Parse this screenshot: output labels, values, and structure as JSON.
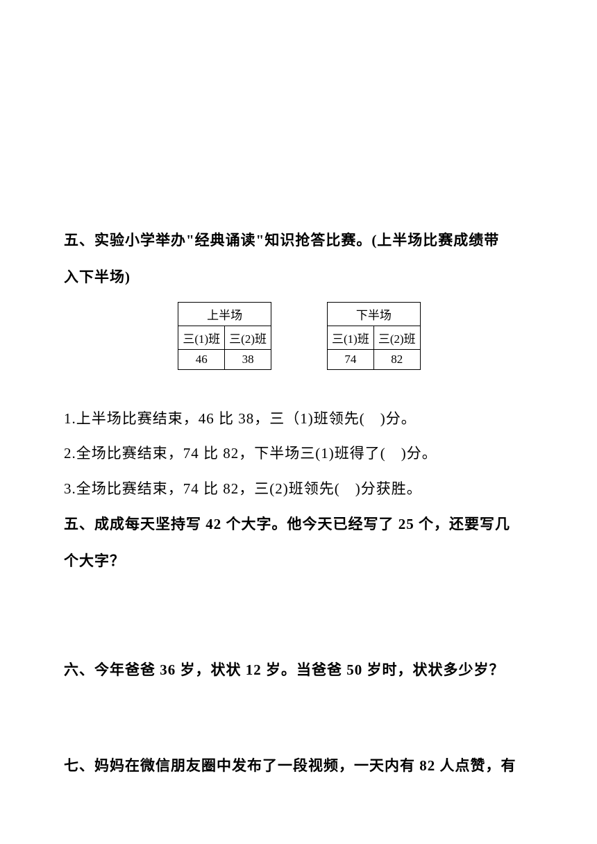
{
  "section5": {
    "heading_line1": "五、实验小学举办\"经典诵读\"知识抢答比赛。(上半场比赛成绩带",
    "heading_line2": "入下半场)"
  },
  "table1": {
    "title": "上半场",
    "col1": "三(1)班",
    "col2": "三(2)班",
    "val1": "46",
    "val2": "38"
  },
  "table2": {
    "title": "下半场",
    "col1": "三(1)班",
    "col2": "三(2)班",
    "val1": "74",
    "val2": "82"
  },
  "questions": {
    "q1": "1.上半场比赛结束，46 比 38，三（1)班领先(　)分。",
    "q2": "2.全场比赛结束，74 比 82，下半场三(1)班得了(　)分。",
    "q3": "3.全场比赛结束，74 比 82，三(2)班领先(　)分获胜。"
  },
  "section5b": {
    "line1": "五、成成每天坚持写 42 个大字。他今天已经写了 25 个，还要写几",
    "line2": "个大字？"
  },
  "section6": {
    "text": "六、今年爸爸 36 岁，状状 12 岁。当爸爸 50 岁时，状状多少岁？"
  },
  "section7": {
    "text": "七、妈妈在微信朋友圈中发布了一段视频，一天内有 82 人点赞，有"
  }
}
